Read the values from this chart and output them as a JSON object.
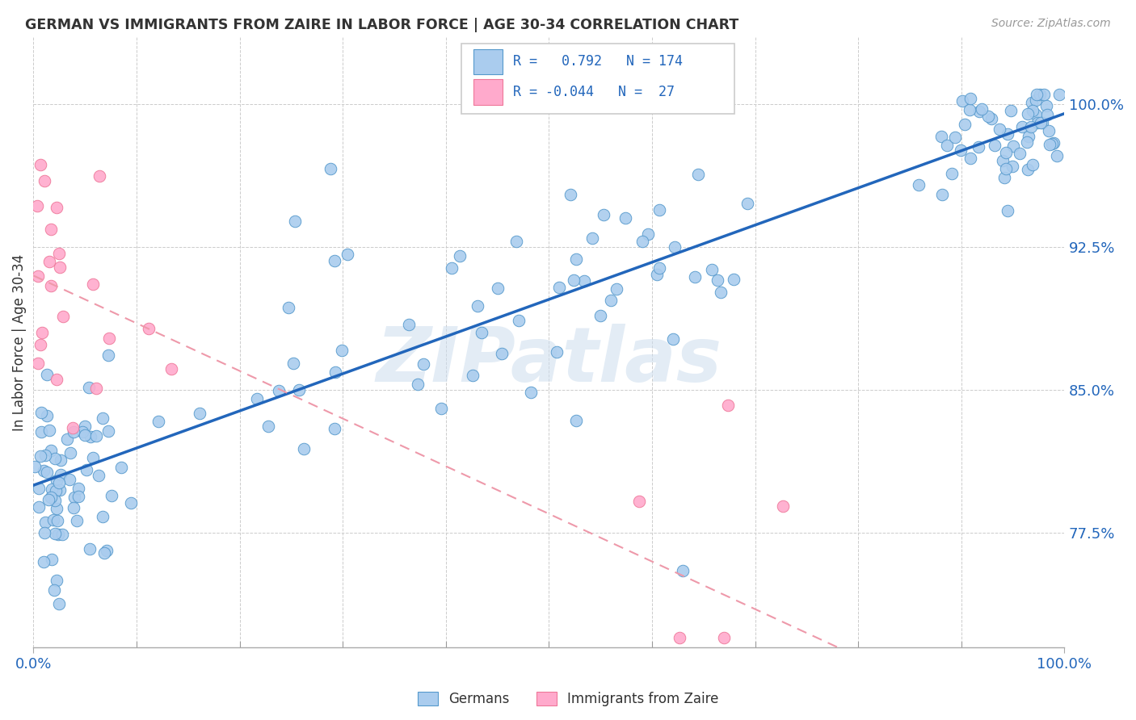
{
  "title": "GERMAN VS IMMIGRANTS FROM ZAIRE IN LABOR FORCE | AGE 30-34 CORRELATION CHART",
  "source": "Source: ZipAtlas.com",
  "ylabel": "In Labor Force | Age 30-34",
  "ytick_labels": [
    "77.5%",
    "85.0%",
    "92.5%",
    "100.0%"
  ],
  "ytick_values": [
    0.775,
    0.85,
    0.925,
    1.0
  ],
  "r_german": 0.792,
  "n_german": 174,
  "r_zaire": -0.044,
  "n_zaire": 27,
  "blue_fill": "#aaccee",
  "blue_edge": "#5599cc",
  "pink_fill": "#ffaacc",
  "pink_edge": "#ee7799",
  "blue_line": "#2266bb",
  "pink_line": "#ee99aa",
  "watermark": "ZIPatlas",
  "xmin": 0.0,
  "xmax": 1.0,
  "ymin": 0.715,
  "ymax": 1.035,
  "seed": 12345,
  "german_intercept": 0.8,
  "german_slope": 0.195,
  "german_noise": 0.028,
  "zaire_intercept": 0.91,
  "zaire_slope": -0.25,
  "zaire_noise": 0.055
}
